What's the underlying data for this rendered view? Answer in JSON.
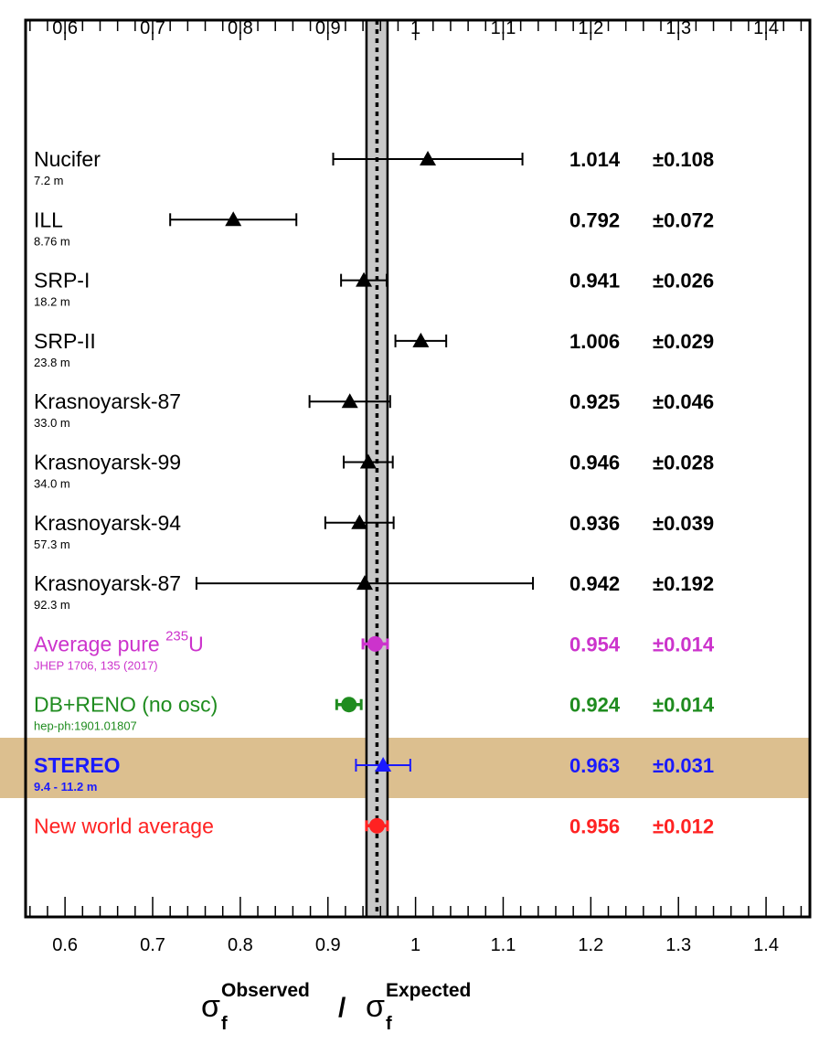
{
  "chart_data": {
    "type": "scatter",
    "orientation": "horizontal-forest-plot",
    "xlim": [
      0.555,
      1.45
    ],
    "tick_labels": [
      "0.6",
      "0.7",
      "0.8",
      "0.9",
      "1",
      "1.1",
      "1.2",
      "1.3",
      "1.4"
    ],
    "tick_values": [
      0.6,
      0.7,
      0.8,
      0.9,
      1.0,
      1.1,
      1.2,
      1.3,
      1.4
    ],
    "xlabel": {
      "main": "σ",
      "sub": "f",
      "sup": "Observed",
      "sep": "/",
      "main2": "σ",
      "sub2": "f",
      "sup2": "Expected"
    },
    "reference_band": {
      "center": 0.956,
      "low": 0.944,
      "high": 0.968
    },
    "highlight_row": "STEREO",
    "points": [
      {
        "name": "Nucifer",
        "sub": "7.2 m",
        "value": 1.014,
        "err": 0.108,
        "value_text": "1.014",
        "err_text": "±0.108",
        "marker": "triangle",
        "color": "#000000",
        "bold": false
      },
      {
        "name": "ILL",
        "sub": "8.76 m",
        "value": 0.792,
        "err": 0.072,
        "value_text": "0.792",
        "err_text": "±0.072",
        "marker": "triangle",
        "color": "#000000",
        "bold": false
      },
      {
        "name": "SRP-I",
        "sub": "18.2 m",
        "value": 0.941,
        "err": 0.026,
        "value_text": "0.941",
        "err_text": "±0.026",
        "marker": "triangle",
        "color": "#000000",
        "bold": false
      },
      {
        "name": "SRP-II",
        "sub": "23.8 m",
        "value": 1.006,
        "err": 0.029,
        "value_text": "1.006",
        "err_text": "±0.029",
        "marker": "triangle",
        "color": "#000000",
        "bold": false
      },
      {
        "name": "Krasnoyarsk-87",
        "sub": "33.0 m",
        "value": 0.925,
        "err": 0.046,
        "value_text": "0.925",
        "err_text": "±0.046",
        "marker": "triangle",
        "color": "#000000",
        "bold": false
      },
      {
        "name": "Krasnoyarsk-99",
        "sub": "34.0 m",
        "value": 0.946,
        "err": 0.028,
        "value_text": "0.946",
        "err_text": "±0.028",
        "marker": "triangle",
        "color": "#000000",
        "bold": false
      },
      {
        "name": "Krasnoyarsk-94",
        "sub": "57.3 m",
        "value": 0.936,
        "err": 0.039,
        "value_text": "0.936",
        "err_text": "±0.039",
        "marker": "triangle",
        "color": "#000000",
        "bold": false
      },
      {
        "name": "Krasnoyarsk-87",
        "sub": "92.3 m",
        "value": 0.942,
        "err": 0.192,
        "value_text": "0.942",
        "err_text": "±0.192",
        "marker": "triangle",
        "color": "#000000",
        "bold": false
      },
      {
        "name": "Average pure ",
        "name_sup": "235",
        "name_tail": "U",
        "sub": "JHEP 1706, 135 (2017)",
        "value": 0.954,
        "err": 0.014,
        "value_text": "0.954",
        "err_text": "±0.014",
        "marker": "circle",
        "color": "#cc33cc",
        "bold": false
      },
      {
        "name": "DB+RENO (no osc)",
        "sub": "hep-ph:1901.01807",
        "value": 0.924,
        "err": 0.014,
        "value_text": "0.924",
        "err_text": "±0.014",
        "marker": "circle",
        "color": "#1f8c1f",
        "bold": false
      },
      {
        "name": "STEREO",
        "sub": "9.4 - 11.2 m",
        "value": 0.963,
        "err": 0.031,
        "value_text": "0.963",
        "err_text": "±0.031",
        "marker": "triangle",
        "color": "#1a1aff",
        "bold": true
      },
      {
        "name": "New world average",
        "sub": "",
        "value": 0.956,
        "err": 0.012,
        "value_text": "0.956",
        "err_text": "±0.012",
        "marker": "circle",
        "color": "#ff2222",
        "bold": false
      }
    ],
    "colors": {
      "highlight": "#dcbf8f",
      "band": "#c8c8c8",
      "axis": "#000000"
    }
  }
}
